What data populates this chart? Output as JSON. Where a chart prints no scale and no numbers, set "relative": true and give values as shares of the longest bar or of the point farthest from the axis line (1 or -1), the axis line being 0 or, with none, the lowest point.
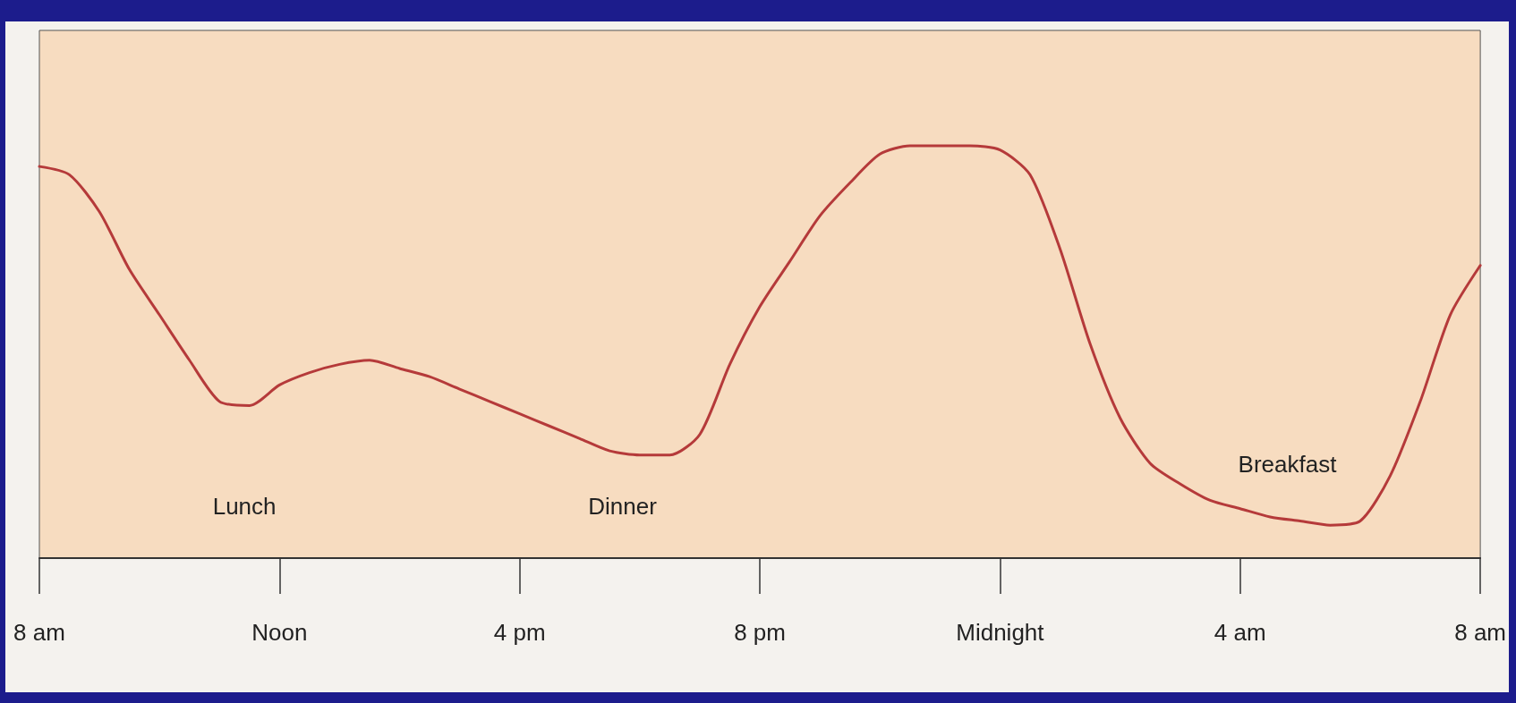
{
  "chart_data": {
    "type": "line",
    "relative": true,
    "color": "#b53a3a",
    "line_style": "solid",
    "marker": "none",
    "grid": false,
    "tick_labels": "x",
    "categories": [
      "8 am",
      null,
      null,
      null,
      null,
      null,
      null,
      null,
      "Noon",
      null,
      null,
      null,
      null,
      null,
      null,
      null,
      "4 pm",
      null,
      null,
      null,
      null,
      null,
      null,
      null,
      "8 pm",
      null,
      null,
      null,
      null,
      null,
      null,
      null,
      "Midnight",
      null,
      null,
      null,
      null,
      null,
      null,
      null,
      "4 am",
      null,
      null,
      null,
      null,
      null,
      null,
      null,
      "8 am"
    ],
    "values": [
      0.95,
      0.93,
      0.84,
      0.7,
      0.59,
      0.48,
      0.38,
      0.37,
      0.42,
      0.45,
      0.47,
      0.48,
      0.46,
      0.44,
      0.41,
      0.38,
      0.35,
      0.32,
      0.29,
      0.26,
      0.25,
      0.25,
      0.3,
      0.47,
      0.61,
      0.72,
      0.83,
      0.91,
      0.98,
      1.0,
      1.0,
      1.0,
      0.99,
      0.93,
      0.75,
      0.52,
      0.34,
      0.23,
      0.18,
      0.14,
      0.12,
      0.1,
      0.09,
      0.08,
      0.09,
      0.2,
      0.38,
      0.59,
      0.71
    ],
    "annotations": [
      "Lunch",
      "Dinner",
      "Breakfast"
    ]
  }
}
